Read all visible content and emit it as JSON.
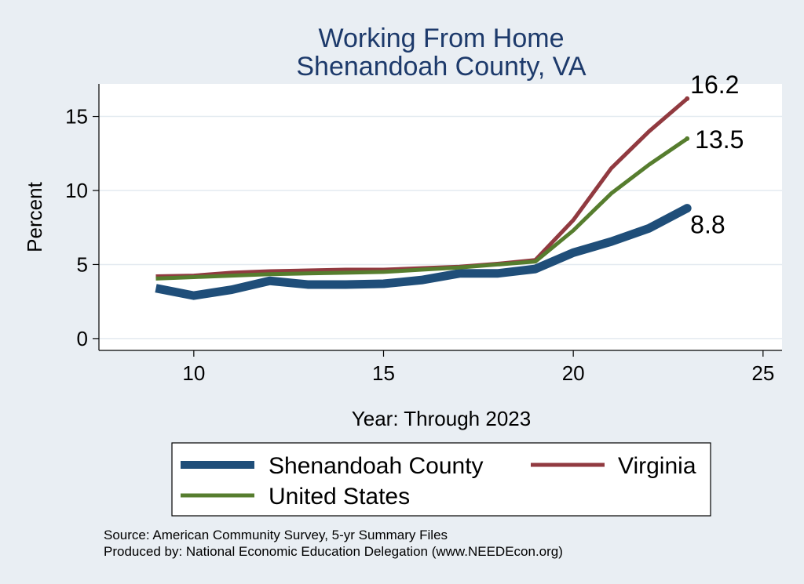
{
  "chart_data": {
    "type": "line",
    "title": [
      "Working From Home",
      "Shenandoah County, VA"
    ],
    "xlabel": "Year: Through 2023",
    "ylabel": "Percent",
    "xlim": [
      7.5,
      25.5
    ],
    "ylim": [
      -0.8,
      17.2
    ],
    "xticks": [
      10,
      15,
      20,
      25
    ],
    "yticks": [
      0,
      5,
      10,
      15
    ],
    "grid": true,
    "legend_position": "bottom",
    "series": [
      {
        "name": "Shenandoah County",
        "color": "#1f4e79",
        "x": [
          9,
          10,
          11,
          12,
          13,
          14,
          15,
          16,
          17,
          18,
          19,
          20,
          21,
          22,
          23
        ],
        "y": [
          3.4,
          2.9,
          3.3,
          3.9,
          3.65,
          3.65,
          3.7,
          3.95,
          4.4,
          4.4,
          4.7,
          5.8,
          6.55,
          7.45,
          8.8
        ],
        "end_label": "8.8"
      },
      {
        "name": "Virginia",
        "color": "#913a40",
        "x": [
          9,
          10,
          11,
          12,
          13,
          14,
          15,
          16,
          17,
          18,
          19,
          20,
          21,
          22,
          23
        ],
        "y": [
          4.2,
          4.25,
          4.45,
          4.55,
          4.6,
          4.65,
          4.65,
          4.75,
          4.85,
          5.05,
          5.3,
          8.0,
          11.5,
          14.0,
          16.2
        ],
        "end_label": "16.2"
      },
      {
        "name": "United States",
        "color": "#567d2e",
        "x": [
          9,
          10,
          11,
          12,
          13,
          14,
          15,
          16,
          17,
          18,
          19,
          20,
          21,
          22,
          23
        ],
        "y": [
          4.05,
          4.15,
          4.25,
          4.35,
          4.4,
          4.45,
          4.5,
          4.65,
          4.8,
          5.0,
          5.2,
          7.3,
          9.8,
          11.75,
          13.5
        ],
        "end_label": "13.5"
      }
    ]
  },
  "legend": {
    "items": [
      "Shenandoah County",
      "Virginia",
      "United States"
    ]
  },
  "source": {
    "line1": "Source: American Community Survey, 5-yr Summary Files",
    "line2": "Produced by: National Economic Education Delegation (www.NEEDEcon.org)"
  }
}
